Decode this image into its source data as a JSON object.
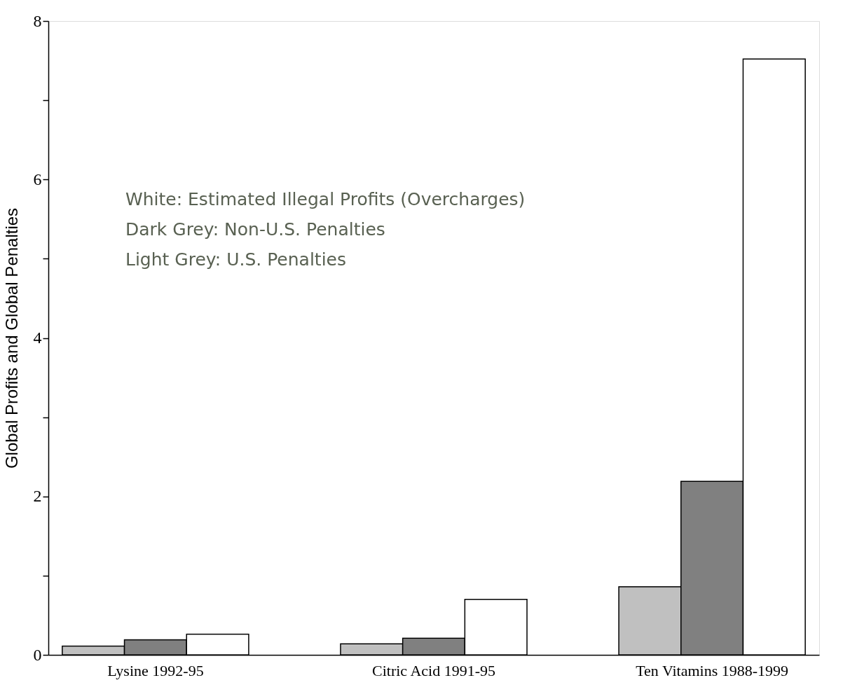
{
  "chart_data": {
    "type": "bar",
    "ylabel": "Global Profits and Global Penalties",
    "categories": [
      "Lysine 1992-95",
      "Citric Acid 1991-95",
      "Ten Vitamins 1988-1999"
    ],
    "series": [
      {
        "color": "#c0c0c0",
        "values": [
          0.11,
          0.14,
          0.86
        ]
      },
      {
        "color": "#808080",
        "values": [
          0.19,
          0.21,
          2.19
        ]
      },
      {
        "color": "#ffffff",
        "values": [
          0.26,
          0.7,
          7.52
        ]
      }
    ],
    "ylim": [
      0,
      8
    ],
    "yticks": [
      0,
      {
        "value": 1,
        "label": null
      },
      2,
      {
        "value": 3,
        "label": null
      },
      4,
      {
        "value": 5,
        "label": null
      },
      6,
      {
        "value": 7,
        "label": null
      },
      8
    ],
    "annotations": [
      "White: Estimated Illegal Profits (Overcharges)",
      "Dark Grey: Non-U.S. Penalties",
      "Light Grey: U.S. Penalties"
    ],
    "grid": false,
    "legend": false
  }
}
